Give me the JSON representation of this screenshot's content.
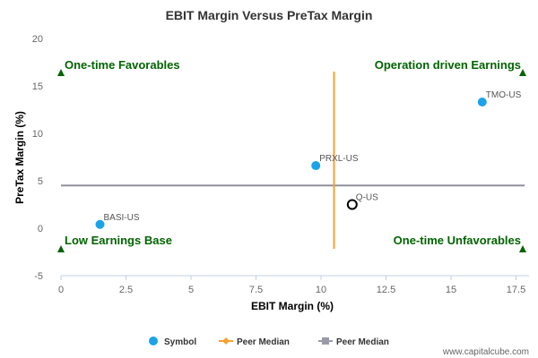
{
  "chart_data": {
    "type": "scatter",
    "title": "EBIT Margin Versus PreTax Margin",
    "xlabel": "EBIT Margin (%)",
    "ylabel": "PreTax Margin (%)",
    "xlim": [
      0,
      18
    ],
    "ylim": [
      -5,
      20
    ],
    "xticks": [
      "0",
      "2.5",
      "5",
      "7.5",
      "10",
      "12.5",
      "15",
      "17.5"
    ],
    "yticks": [
      "-5",
      "0",
      "5",
      "10",
      "15",
      "20"
    ],
    "grid": false,
    "points": [
      {
        "label": "TMO-US",
        "x": 16.2,
        "y": 13.3,
        "style": "filled"
      },
      {
        "label": "PRXL-US",
        "x": 9.8,
        "y": 6.6,
        "style": "filled"
      },
      {
        "label": "BASI-US",
        "x": 1.5,
        "y": 0.4,
        "style": "filled"
      },
      {
        "label": "Q-US",
        "x": 11.2,
        "y": 2.5,
        "style": "open"
      }
    ],
    "peer_median_x": 10.5,
    "peer_median_y": 4.5,
    "quadrants": [
      {
        "text": "One-time Favorables",
        "position": "top-left"
      },
      {
        "text": "Operation driven Earnings",
        "position": "top-right"
      },
      {
        "text": "Low Earnings Base",
        "position": "bottom-left"
      },
      {
        "text": "One-time Unfavorables",
        "position": "bottom-right"
      }
    ],
    "legend": [
      {
        "name": "Symbol",
        "marker": "circle",
        "color": "#1aa3e8"
      },
      {
        "name": "Peer Median",
        "marker": "diamond-line",
        "color": "#f4a232"
      },
      {
        "name": "Peer Median",
        "marker": "square-line",
        "color": "#9a9aaa"
      }
    ],
    "legend_position": "bottom",
    "colors": {
      "point": "#1aa3e8",
      "vertical_median": "#f4a232",
      "horizontal_median": "#8f8f9e",
      "quadrant_text": "#006400",
      "quadrant_marker": "#006400"
    }
  },
  "footer": {
    "credit": "www.capitalcube.com"
  }
}
